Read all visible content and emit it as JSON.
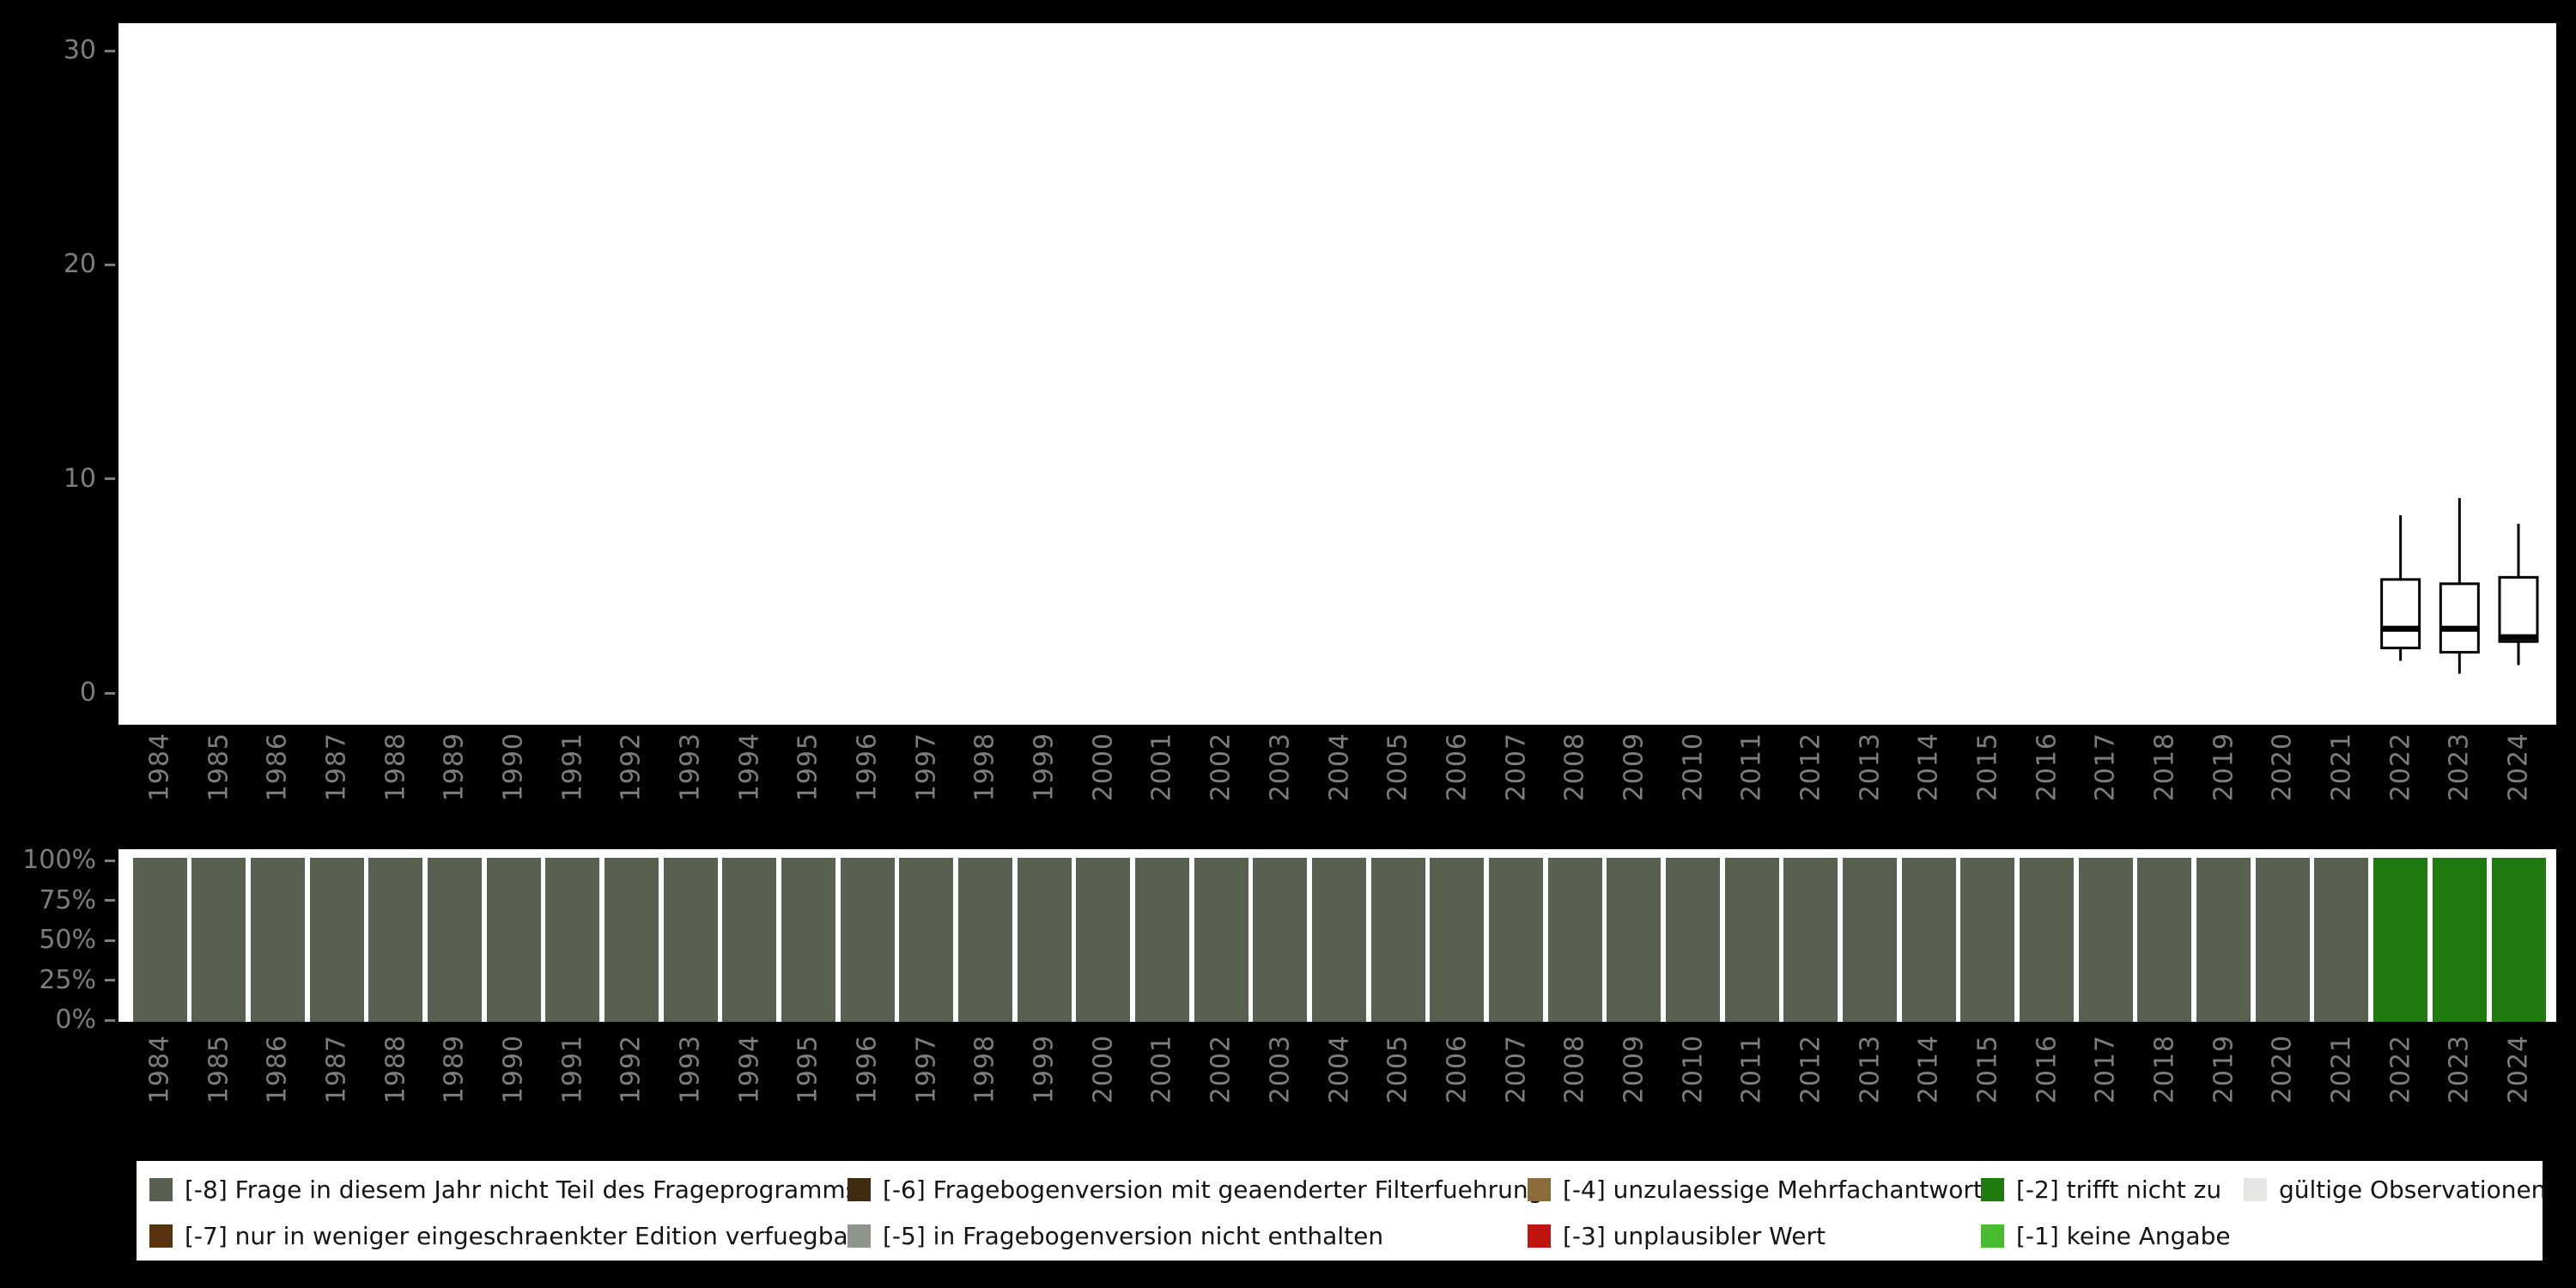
{
  "page": {
    "background": "#000000"
  },
  "colors": {
    "panel_background": "#ffffff",
    "axis_text": "#7d7d7d",
    "legend_text": "#141414",
    "box_stroke": "#000000"
  },
  "chart_data": [
    {
      "id": "value-distribution-boxplot",
      "type": "boxplot",
      "title": "",
      "xlabel": "",
      "ylabel": "",
      "ylim": [
        0,
        30
      ],
      "y_ticks": [
        30,
        20,
        10,
        0
      ],
      "grid": false,
      "x_categories": [
        "1984",
        "1985",
        "1986",
        "1987",
        "1988",
        "1989",
        "1990",
        "1991",
        "1992",
        "1993",
        "1994",
        "1995",
        "1996",
        "1997",
        "1998",
        "1999",
        "2000",
        "2001",
        "2002",
        "2003",
        "2004",
        "2005",
        "2006",
        "2007",
        "2008",
        "2009",
        "2010",
        "2011",
        "2012",
        "2013",
        "2014",
        "2015",
        "2016",
        "2017",
        "2018",
        "2019",
        "2020",
        "2021",
        "2022",
        "2023",
        "2024"
      ],
      "boxplots": [
        {
          "year": "2022",
          "whisker_low": 1.5,
          "q1": 2.1,
          "median": 3.0,
          "q3": 5.3,
          "whisker_high": 8.3
        },
        {
          "year": "2023",
          "whisker_low": 0.9,
          "q1": 1.9,
          "median": 3.0,
          "q3": 5.1,
          "whisker_high": 9.1
        },
        {
          "year": "2024",
          "whisker_low": 1.3,
          "q1": 2.4,
          "median": 2.6,
          "q3": 5.4,
          "whisker_high": 7.9
        }
      ]
    },
    {
      "id": "missing-codes-stacked-bar",
      "type": "bar",
      "stacked": true,
      "unit": "percent",
      "title": "",
      "y_ticks": [
        "100%",
        "75%",
        "50%",
        "25%",
        "0%"
      ],
      "x_categories": [
        "1984",
        "1985",
        "1986",
        "1987",
        "1988",
        "1989",
        "1990",
        "1991",
        "1992",
        "1993",
        "1994",
        "1995",
        "1996",
        "1997",
        "1998",
        "1999",
        "2000",
        "2001",
        "2002",
        "2003",
        "2004",
        "2005",
        "2006",
        "2007",
        "2008",
        "2009",
        "2010",
        "2011",
        "2012",
        "2013",
        "2014",
        "2015",
        "2016",
        "2017",
        "2018",
        "2019",
        "2020",
        "2021",
        "2022",
        "2023",
        "2024"
      ],
      "bars": [
        {
          "year": "1984",
          "code": "-8",
          "pct": 100
        },
        {
          "year": "1985",
          "code": "-8",
          "pct": 100
        },
        {
          "year": "1986",
          "code": "-8",
          "pct": 100
        },
        {
          "year": "1987",
          "code": "-8",
          "pct": 100
        },
        {
          "year": "1988",
          "code": "-8",
          "pct": 100
        },
        {
          "year": "1989",
          "code": "-8",
          "pct": 100
        },
        {
          "year": "1990",
          "code": "-8",
          "pct": 100
        },
        {
          "year": "1991",
          "code": "-8",
          "pct": 100
        },
        {
          "year": "1992",
          "code": "-8",
          "pct": 100
        },
        {
          "year": "1993",
          "code": "-8",
          "pct": 100
        },
        {
          "year": "1994",
          "code": "-8",
          "pct": 100
        },
        {
          "year": "1995",
          "code": "-8",
          "pct": 100
        },
        {
          "year": "1996",
          "code": "-8",
          "pct": 100
        },
        {
          "year": "1997",
          "code": "-8",
          "pct": 100
        },
        {
          "year": "1998",
          "code": "-8",
          "pct": 100
        },
        {
          "year": "1999",
          "code": "-8",
          "pct": 100
        },
        {
          "year": "2000",
          "code": "-8",
          "pct": 100
        },
        {
          "year": "2001",
          "code": "-8",
          "pct": 100
        },
        {
          "year": "2002",
          "code": "-8",
          "pct": 100
        },
        {
          "year": "2003",
          "code": "-8",
          "pct": 100
        },
        {
          "year": "2004",
          "code": "-8",
          "pct": 100
        },
        {
          "year": "2005",
          "code": "-8",
          "pct": 100
        },
        {
          "year": "2006",
          "code": "-8",
          "pct": 100
        },
        {
          "year": "2007",
          "code": "-8",
          "pct": 100
        },
        {
          "year": "2008",
          "code": "-8",
          "pct": 100
        },
        {
          "year": "2009",
          "code": "-8",
          "pct": 100
        },
        {
          "year": "2010",
          "code": "-8",
          "pct": 100
        },
        {
          "year": "2011",
          "code": "-8",
          "pct": 100
        },
        {
          "year": "2012",
          "code": "-8",
          "pct": 100
        },
        {
          "year": "2013",
          "code": "-8",
          "pct": 100
        },
        {
          "year": "2014",
          "code": "-8",
          "pct": 100
        },
        {
          "year": "2015",
          "code": "-8",
          "pct": 100
        },
        {
          "year": "2016",
          "code": "-8",
          "pct": 100
        },
        {
          "year": "2017",
          "code": "-8",
          "pct": 100
        },
        {
          "year": "2018",
          "code": "-8",
          "pct": 100
        },
        {
          "year": "2019",
          "code": "-8",
          "pct": 100
        },
        {
          "year": "2020",
          "code": "-8",
          "pct": 100
        },
        {
          "year": "2021",
          "code": "-8",
          "pct": 100
        },
        {
          "year": "2022",
          "code": "-2",
          "pct": 100
        },
        {
          "year": "2023",
          "code": "-2",
          "pct": 100
        },
        {
          "year": "2024",
          "code": "-2",
          "pct": 100
        }
      ]
    }
  ],
  "legend": {
    "items": [
      {
        "code": "-8",
        "label": "[-8] Frage in diesem Jahr nicht Teil des Frageprogramms",
        "color": "#58614f",
        "col": 0,
        "row": 0
      },
      {
        "code": "-7",
        "label": "[-7] nur in weniger eingeschraenkter Edition verfuegbar",
        "color": "#59330e",
        "col": 0,
        "row": 1
      },
      {
        "code": "-6",
        "label": "[-6] Fragebogenversion mit geaenderter Filterfuehrung",
        "color": "#3e2b10",
        "col": 1,
        "row": 0
      },
      {
        "code": "-5",
        "label": "[-5] in Fragebogenversion nicht enthalten",
        "color": "#8e968c",
        "col": 1,
        "row": 1
      },
      {
        "code": "-4",
        "label": "[-4] unzulaessige Mehrfachantwort",
        "color": "#8a6d3b",
        "col": 2,
        "row": 0
      },
      {
        "code": "-3",
        "label": "[-3] unplausibler Wert",
        "color": "#c0150f",
        "col": 2,
        "row": 1
      },
      {
        "code": "-2",
        "label": "[-2] trifft nicht zu",
        "color": "#1f7a10",
        "col": 3,
        "row": 0
      },
      {
        "code": "-1",
        "label": "[-1] keine Angabe",
        "color": "#49bb30",
        "col": 3,
        "row": 1
      },
      {
        "code": "valid",
        "label": "gültige Observationen",
        "color": "#e6e6e4",
        "col": 4,
        "row": 0
      }
    ]
  }
}
